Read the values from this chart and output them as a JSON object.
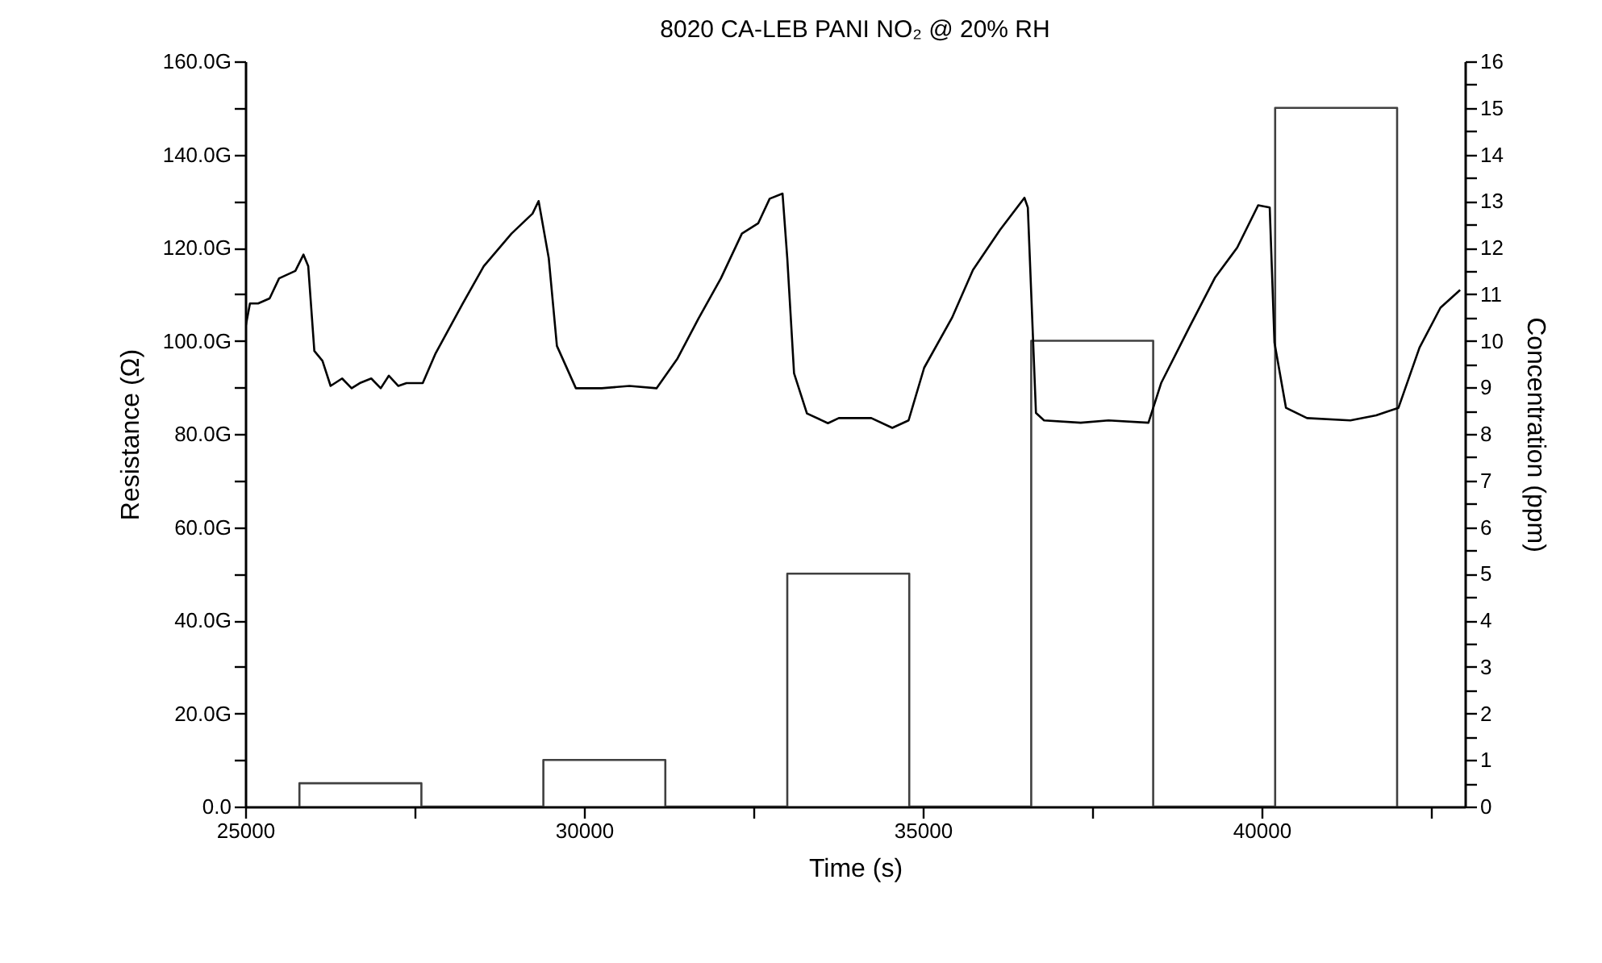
{
  "chart_data": {
    "type": "line",
    "title": "8020 CA-LEB PANI NO₂ @ 20% RH",
    "xlabel": "Time (s)",
    "ylabel": "Resistance (Ω)",
    "y2label": "Concentration (ppm)",
    "xlim": [
      25000,
      43000
    ],
    "xticks": [
      25000,
      {
        "value": 27500,
        "label": null
      },
      30000,
      {
        "value": 32500,
        "label": null
      },
      35000,
      {
        "value": 37500,
        "label": null
      },
      40000,
      {
        "value": 42500,
        "label": null
      }
    ],
    "ylim": [
      0,
      160
    ],
    "yticks": [
      {
        "value": 0,
        "label": "0.0"
      },
      {
        "value": 10,
        "label": null
      },
      {
        "value": 20,
        "label": "20.0G"
      },
      {
        "value": 30,
        "label": null
      },
      {
        "value": 40,
        "label": "40.0G"
      },
      {
        "value": 50,
        "label": null
      },
      {
        "value": 60,
        "label": "60.0G"
      },
      {
        "value": 70,
        "label": null
      },
      {
        "value": 80,
        "label": "80.0G"
      },
      {
        "value": 90,
        "label": null
      },
      {
        "value": 100,
        "label": "100.0G"
      },
      {
        "value": 110,
        "label": null
      },
      {
        "value": 120,
        "label": "120.0G"
      },
      {
        "value": 130,
        "label": null
      },
      {
        "value": 140,
        "label": "140.0G"
      },
      {
        "value": 150,
        "label": null
      },
      {
        "value": 160,
        "label": "160.0G"
      }
    ],
    "y2lim": [
      0,
      16
    ],
    "y2ticks": [
      0,
      {
        "value": 0.5,
        "label": null
      },
      1,
      {
        "value": 1.5,
        "label": null
      },
      2,
      {
        "value": 2.5,
        "label": null
      },
      3,
      {
        "value": 3.5,
        "label": null
      },
      4,
      {
        "value": 4.5,
        "label": null
      },
      5,
      {
        "value": 5.5,
        "label": null
      },
      6,
      {
        "value": 6.5,
        "label": null
      },
      7,
      {
        "value": 7.5,
        "label": null
      },
      8,
      {
        "value": 8.5,
        "label": null
      },
      9,
      {
        "value": 9.5,
        "label": null
      },
      10,
      {
        "value": 10.5,
        "label": null
      },
      11,
      {
        "value": 11.5,
        "label": null
      },
      12,
      {
        "value": 12.5,
        "label": null
      },
      13,
      {
        "value": 13.5,
        "label": null
      },
      14,
      {
        "value": 14.5,
        "label": null
      },
      15,
      {
        "value": 15.5,
        "label": null
      },
      16
    ],
    "grid": false,
    "series": [
      {
        "color": "#404040",
        "axis": "y2",
        "x": [
          25800,
          25800,
          27600,
          27600,
          29400,
          29400,
          31200,
          31200,
          33000,
          33000,
          34800,
          34800,
          36600,
          36600,
          38400,
          38400,
          40200,
          40200,
          42000,
          42000
        ],
        "values": [
          0,
          0.5,
          0.5,
          0,
          0,
          1,
          1,
          0,
          0,
          5,
          5,
          0,
          0,
          10,
          10,
          0,
          0,
          15,
          15,
          0
        ]
      },
      {
        "color": "#000000",
        "x": [
          25000,
          25070,
          25190,
          25360,
          25500,
          25740,
          25860,
          25930,
          26020,
          26140,
          26260,
          26430,
          26570,
          26690,
          26860,
          27000,
          27120,
          27260,
          27380,
          27620,
          27810,
          28210,
          28520,
          28930,
          29240,
          29330,
          29480,
          29600,
          29880,
          30260,
          30670,
          31070,
          31380,
          31690,
          32020,
          32330,
          32570,
          32740,
          32930,
          33000,
          33100,
          33290,
          33600,
          33760,
          34240,
          34550,
          34790,
          35020,
          35430,
          35740,
          36140,
          36500,
          36550,
          36670,
          36790,
          37330,
          37740,
          38330,
          38520,
          38930,
          39310,
          39640,
          39950,
          40120,
          40190,
          40360,
          40670,
          41310,
          41690,
          42020,
          42330,
          42640,
          42930
        ],
        "values": [
          102.6,
          108.0,
          108.0,
          109.1,
          113.4,
          115.0,
          118.5,
          116.0,
          97.8,
          95.7,
          90.3,
          91.9,
          89.8,
          90.9,
          91.9,
          89.8,
          92.5,
          90.3,
          90.9,
          90.9,
          97.3,
          108.0,
          116.0,
          123.0,
          127.3,
          130.0,
          117.7,
          98.9,
          89.8,
          89.8,
          90.3,
          89.8,
          96.2,
          104.8,
          113.4,
          123.0,
          125.2,
          130.5,
          131.6,
          117.7,
          93.0,
          84.4,
          82.3,
          83.4,
          83.4,
          81.3,
          82.9,
          94.2,
          104.9,
          115.2,
          123.8,
          130.7,
          128.6,
          84.5,
          82.9,
          82.4,
          82.9,
          82.4,
          91.0,
          102.8,
          113.5,
          120.0,
          129.1,
          128.6,
          99.6,
          85.6,
          83.4,
          82.9,
          84.0,
          85.6,
          98.5,
          107.1,
          110.9
        ]
      }
    ]
  }
}
